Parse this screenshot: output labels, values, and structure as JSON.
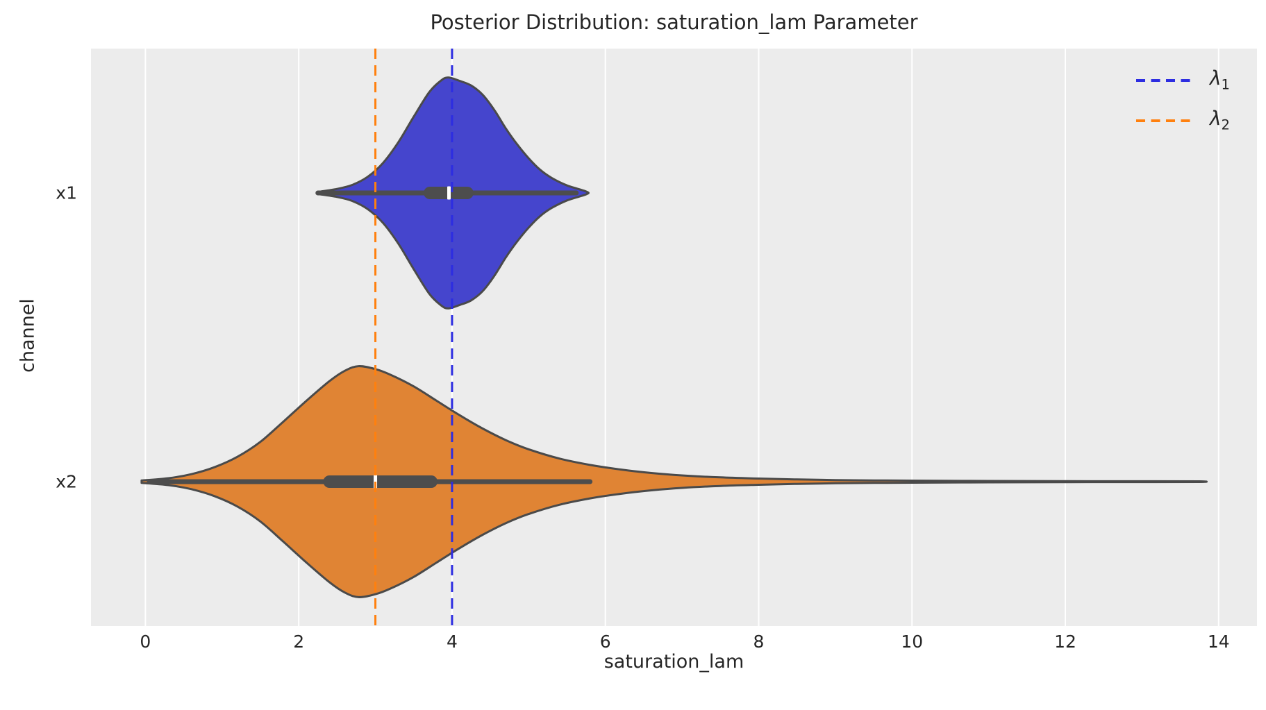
{
  "chart_data": {
    "type": "violin",
    "orientation": "horizontal",
    "title": "Posterior Distribution: saturation_lam Parameter",
    "xlabel": "saturation_lam",
    "ylabel": "channel",
    "categories": [
      "x1",
      "x2"
    ],
    "x_ticks": [
      0,
      2,
      4,
      6,
      8,
      10,
      12,
      14
    ],
    "xlim": [
      -0.71,
      14.5
    ],
    "grid": "vertical-white-lines",
    "violin_width": 0.8,
    "colors": {
      "axes_background": "#ececec",
      "gridline": "#ffffff",
      "text": "#262626",
      "violin_edge": "#4a4a4a",
      "inner_box": "#4d4d4d",
      "median": "#ffffff"
    },
    "series": [
      {
        "name": "x1",
        "fill": "#4545cd",
        "stats": {
          "whisker_low": 2.25,
          "q1": 3.63,
          "median": 3.96,
          "q3": 4.28,
          "whisker_high": 5.62
        },
        "support": [
          2.28,
          5.75
        ],
        "peak_at": 3.95,
        "kde": [
          [
            2.28,
            0.012
          ],
          [
            2.5,
            0.035
          ],
          [
            2.7,
            0.07
          ],
          [
            2.9,
            0.14
          ],
          [
            3.1,
            0.26
          ],
          [
            3.3,
            0.44
          ],
          [
            3.5,
            0.66
          ],
          [
            3.7,
            0.87
          ],
          [
            3.85,
            0.97
          ],
          [
            3.95,
            1.0
          ],
          [
            4.1,
            0.97
          ],
          [
            4.25,
            0.93
          ],
          [
            4.4,
            0.85
          ],
          [
            4.55,
            0.72
          ],
          [
            4.7,
            0.56
          ],
          [
            4.85,
            0.42
          ],
          [
            5.0,
            0.3
          ],
          [
            5.15,
            0.2
          ],
          [
            5.3,
            0.13
          ],
          [
            5.5,
            0.065
          ],
          [
            5.75,
            0.012
          ]
        ]
      },
      {
        "name": "x2",
        "fill": "#e08434",
        "stats": {
          "whisker_low": 0.05,
          "q1": 2.32,
          "median": 3.0,
          "q3": 3.81,
          "whisker_high": 5.8
        },
        "support": [
          -0.05,
          13.75
        ],
        "peak_at": 2.78,
        "kde": [
          [
            -0.05,
            0.01
          ],
          [
            0.3,
            0.03
          ],
          [
            0.6,
            0.065
          ],
          [
            0.9,
            0.125
          ],
          [
            1.2,
            0.215
          ],
          [
            1.5,
            0.345
          ],
          [
            1.8,
            0.52
          ],
          [
            2.1,
            0.7
          ],
          [
            2.4,
            0.87
          ],
          [
            2.6,
            0.96
          ],
          [
            2.78,
            1.0
          ],
          [
            3.0,
            0.975
          ],
          [
            3.2,
            0.925
          ],
          [
            3.5,
            0.825
          ],
          [
            3.8,
            0.7
          ],
          [
            4.1,
            0.575
          ],
          [
            4.4,
            0.46
          ],
          [
            4.7,
            0.36
          ],
          [
            5.0,
            0.28
          ],
          [
            5.4,
            0.2
          ],
          [
            5.8,
            0.145
          ],
          [
            6.2,
            0.105
          ],
          [
            6.6,
            0.075
          ],
          [
            7.0,
            0.054
          ],
          [
            7.5,
            0.037
          ],
          [
            8.0,
            0.027
          ],
          [
            8.5,
            0.019
          ],
          [
            9.0,
            0.014
          ],
          [
            9.5,
            0.011
          ],
          [
            10.0,
            0.009
          ],
          [
            11.0,
            0.006
          ],
          [
            12.0,
            0.0045
          ],
          [
            13.0,
            0.0035
          ],
          [
            13.75,
            0.003
          ]
        ]
      }
    ],
    "reference_lines": [
      {
        "name": "lambda_1",
        "x": 4.0,
        "color": "#2d2de1",
        "linestyle": "dashed"
      },
      {
        "name": "lambda_2",
        "x": 3.0,
        "color": "#ff800e",
        "linestyle": "dashed"
      }
    ],
    "legend": {
      "position": "upper right",
      "entries": [
        {
          "symbol": "λ",
          "subscript": "1",
          "color": "#2d2de1",
          "linestyle": "dashed"
        },
        {
          "symbol": "λ",
          "subscript": "2",
          "color": "#ff800e",
          "linestyle": "dashed"
        }
      ]
    }
  }
}
